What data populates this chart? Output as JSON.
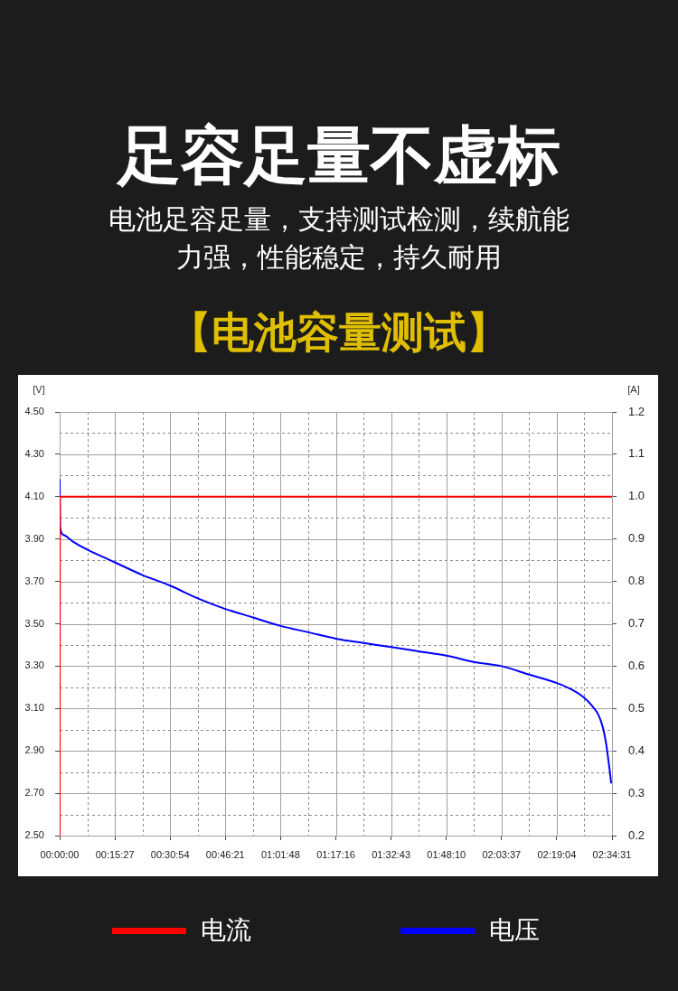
{
  "chart_data": {
    "type": "line",
    "title": "足容足量不虚标",
    "subtitle": "电池足容足量，支持测试检测，续航能力强，性能稳定，持久耐用",
    "annotations": [
      "【电池容量测试】"
    ],
    "ylabel": "[V]",
    "y2label": "[A]",
    "xlim": [
      0,
      2.5753
    ],
    "xticks": [
      {
        "value": 0,
        "label": "00:00:00"
      },
      {
        "value": 0.1288,
        "label": null
      },
      {
        "value": 0.2575,
        "label": "00:15:27"
      },
      {
        "value": 0.3863,
        "label": null
      },
      {
        "value": 0.515,
        "label": "00:30:54"
      },
      {
        "value": 0.6438,
        "label": null
      },
      {
        "value": 0.7725,
        "label": "00:46:21"
      },
      {
        "value": 0.9013,
        "label": null
      },
      {
        "value": 1.03,
        "label": "01:01:48"
      },
      {
        "value": 1.1589,
        "label": null
      },
      {
        "value": 1.2878,
        "label": "01:17:16"
      },
      {
        "value": 1.4165,
        "label": null
      },
      {
        "value": 1.5453,
        "label": "01:32:43"
      },
      {
        "value": 1.674,
        "label": null
      },
      {
        "value": 1.8028,
        "label": "01:48:10"
      },
      {
        "value": 1.9315,
        "label": null
      },
      {
        "value": 2.0603,
        "label": "02:03:37"
      },
      {
        "value": 2.189,
        "label": null
      },
      {
        "value": 2.3178,
        "label": "02:19:04"
      },
      {
        "value": 2.4465,
        "label": null
      },
      {
        "value": 2.5753,
        "label": "02:34:31"
      }
    ],
    "ylim": [
      2.5,
      4.5
    ],
    "yticks": [
      {
        "value": 2.5,
        "label": "2.50"
      },
      {
        "value": 2.6,
        "label": null
      },
      {
        "value": 2.7,
        "label": "2.70"
      },
      {
        "value": 2.8,
        "label": null
      },
      {
        "value": 2.9,
        "label": "2.90"
      },
      {
        "value": 3.0,
        "label": null
      },
      {
        "value": 3.1,
        "label": "3.10"
      },
      {
        "value": 3.2,
        "label": null
      },
      {
        "value": 3.3,
        "label": "3.30"
      },
      {
        "value": 3.4,
        "label": null
      },
      {
        "value": 3.5,
        "label": "3.50"
      },
      {
        "value": 3.6,
        "label": null
      },
      {
        "value": 3.7,
        "label": "3.70"
      },
      {
        "value": 3.8,
        "label": null
      },
      {
        "value": 3.9,
        "label": "3.90"
      },
      {
        "value": 4.0,
        "label": null
      },
      {
        "value": 4.1,
        "label": "4.10"
      },
      {
        "value": 4.2,
        "label": null
      },
      {
        "value": 4.3,
        "label": "4.30"
      },
      {
        "value": 4.4,
        "label": null
      },
      {
        "value": 4.5,
        "label": "4.50"
      }
    ],
    "y2lim": [
      0.2,
      1.2
    ],
    "y2ticks": [
      0.2,
      0.3,
      0.4,
      0.5,
      0.6,
      0.7,
      0.8,
      0.9,
      {
        "value": 1,
        "label": "1.0"
      },
      1.1,
      1.2
    ],
    "grid": true,
    "legend": "bottom",
    "series": [
      {
        "name": "电流",
        "color": "#ff0000",
        "axis": "y2",
        "x": [
          0,
          0.001,
          2.5753
        ],
        "values": [
          0.2,
          1.0,
          1.0
        ]
      },
      {
        "name": "电压",
        "color": "#0000ff",
        "x": [
          0,
          0.002,
          0.0168,
          0.0588,
          0.1288,
          0.2575,
          0.3863,
          0.515,
          0.6438,
          0.7725,
          0.9013,
          1.03,
          1.1589,
          1.2878,
          1.41,
          1.5453,
          1.674,
          1.8028,
          1.9315,
          2.0603,
          2.189,
          2.3178,
          2.386,
          2.4465,
          2.4843,
          2.512,
          2.533,
          2.547,
          2.558,
          2.5655,
          2.571
        ],
        "values": [
          4.18,
          3.96,
          3.92,
          3.89,
          3.85,
          3.79,
          3.73,
          3.68,
          3.62,
          3.57,
          3.53,
          3.49,
          3.46,
          3.43,
          3.41,
          3.39,
          3.37,
          3.35,
          3.32,
          3.3,
          3.26,
          3.22,
          3.19,
          3.15,
          3.11,
          3.07,
          3.01,
          2.94,
          2.86,
          2.8,
          2.75
        ]
      }
    ]
  }
}
